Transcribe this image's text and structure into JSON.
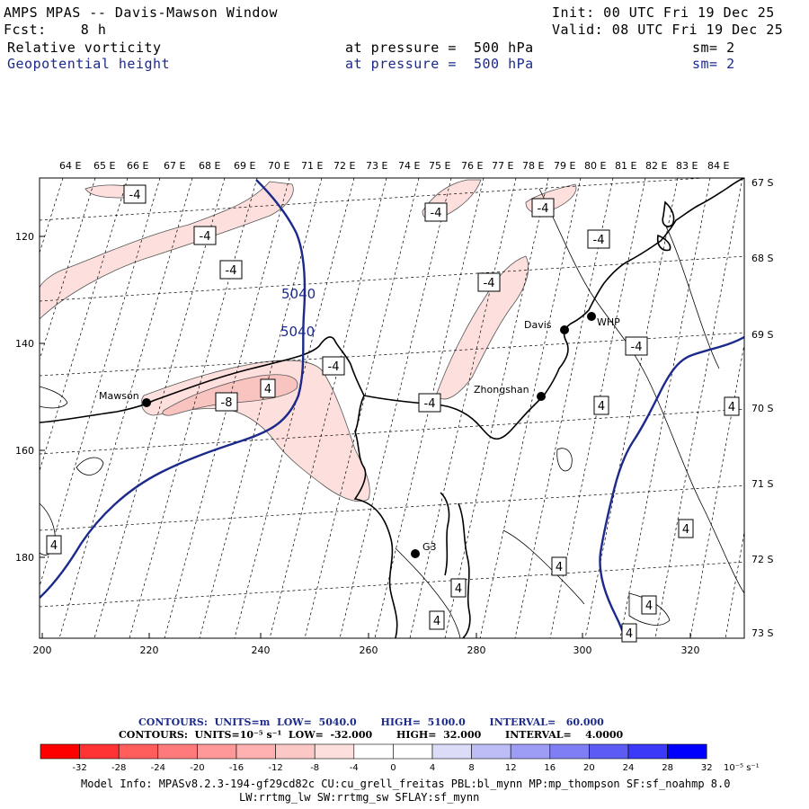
{
  "header": {
    "model": "AMPS MPAS -- Davis-Mawson Window",
    "fcst": "Fcst:    8 h",
    "init": "Init: 00 UTC Fri 19 Dec 25",
    "valid": "Valid: 08 UTC Fri 19 Dec 25",
    "field1": {
      "name": "Relative vorticity",
      "level_label": "at pressure =  500 hPa",
      "sm": "sm= 2"
    },
    "field2": {
      "name": "Geopotential height",
      "level_label": "at pressure =  500 hPa",
      "sm": "sm= 2"
    }
  },
  "map": {
    "top_labels": [
      "64 E",
      "65 E",
      "66 E",
      "67 E",
      "68 E",
      "69 E",
      "70 E",
      "71 E",
      "72 E",
      "73 E",
      "74 E",
      "75 E",
      "76 E",
      "77 E",
      "78 E",
      "79 E",
      "80 E",
      "81 E",
      "82 E",
      "83 E",
      "84 E"
    ],
    "right_labels": [
      "67 S",
      "68 S",
      "69 S",
      "70 S",
      "71 S",
      "72 S",
      "73 S"
    ],
    "left_labels": [
      "120",
      "140",
      "160",
      "180"
    ],
    "bottom_labels": [
      "200",
      "220",
      "240",
      "260",
      "280",
      "300",
      "320"
    ],
    "stations": [
      "Mawson",
      "Davis",
      "WHP",
      "Zhongshan",
      "G3"
    ],
    "height_labels": [
      "5040",
      "5040"
    ],
    "vort_labels": [
      "-4",
      "-4",
      "-4",
      "-4",
      "-4",
      "-4",
      "-4",
      "-8",
      "-4",
      "-4",
      "-4",
      "4",
      "4",
      "4",
      "4",
      "4",
      "4",
      "4",
      "4",
      "4",
      "4"
    ],
    "colors": {
      "height": "#1c2a8c",
      "neg_fill": "#fde0dd",
      "neg_fill_strong": "#f9c4c0"
    }
  },
  "footer": {
    "contours1": "CONTOURS:  UNITS=m  LOW=  5040.0       HIGH=  5100.0       INTERVAL=   60.000",
    "contours2": "CONTOURS:  UNITS=10⁻⁵ s⁻¹  LOW=  -32.000       HIGH=  32.000       INTERVAL=    4.0000",
    "colorbar_ticks": [
      "-32",
      "-28",
      "-24",
      "-20",
      "-16",
      "-12",
      "-8",
      "-4",
      "0",
      "4",
      "8",
      "12",
      "16",
      "20",
      "24",
      "28",
      "32"
    ],
    "colorbar_unit": "10⁻⁵ s⁻¹",
    "colorbar_colors": [
      "#ff0000",
      "#ff3333",
      "#ff5c5c",
      "#ff7a7a",
      "#ff9898",
      "#ffb0b0",
      "#fcc8c6",
      "#fde0dd",
      "#ffffff",
      "#ffffff",
      "#dcdcf8",
      "#bdbdf6",
      "#9d9df5",
      "#7f7ff3",
      "#5c5cf5",
      "#3a3af8",
      "#0000ff"
    ],
    "model_info": "Model Info: MPASv8.2.3-194-gf29cd82c CU:cu_grell_freitas PBL:bl_mynn MP:mp_thompson SF:sf_noahmp 8.0",
    "model_info2": "LW:rrtmg_lw SW:rrtmg_sw SFLAY:sf_mynn"
  }
}
